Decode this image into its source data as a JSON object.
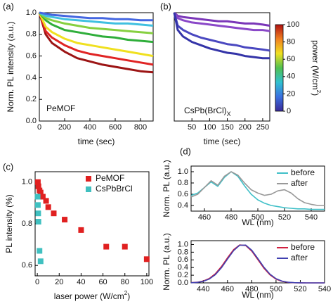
{
  "chart_data": [
    {
      "type": "line",
      "panel": "(a)",
      "annotation": "PeMOF",
      "xlabel": "time (sec)",
      "ylabel": "Norm. PL intensity (a.u.)",
      "xlim": [
        0,
        900
      ],
      "xticks": [
        0,
        200,
        400,
        600,
        800
      ],
      "ylim": [
        0,
        1.0
      ],
      "yticks": [
        {
          "value": 0,
          "label": "0.0"
        },
        0.2,
        0.4,
        0.6,
        0.8,
        {
          "value": 1,
          "label": "1.0"
        }
      ],
      "x": [
        0,
        50,
        100,
        200,
        300,
        400,
        500,
        600,
        700,
        800,
        900
      ],
      "series": [
        {
          "color": "#9c1414",
          "values": [
            1.0,
            0.8,
            0.72,
            0.64,
            0.58,
            0.55,
            0.52,
            0.5,
            0.48,
            0.46,
            0.45
          ]
        },
        {
          "color": "#e02424",
          "values": [
            1.0,
            0.83,
            0.77,
            0.7,
            0.65,
            0.62,
            0.6,
            0.58,
            0.56,
            0.54,
            0.52
          ]
        },
        {
          "color": "#f0e020",
          "values": [
            1.0,
            0.87,
            0.82,
            0.76,
            0.72,
            0.7,
            0.68,
            0.66,
            0.64,
            0.62,
            0.6
          ]
        },
        {
          "color": "#2fae3a",
          "values": [
            1.0,
            0.93,
            0.89,
            0.84,
            0.82,
            0.8,
            0.78,
            0.77,
            0.75,
            0.74,
            0.73
          ]
        },
        {
          "color": "#86d040",
          "values": [
            1.0,
            0.95,
            0.93,
            0.9,
            0.88,
            0.86,
            0.85,
            0.84,
            0.83,
            0.82,
            0.81
          ]
        },
        {
          "color": "#40c0e0",
          "values": [
            1.0,
            0.97,
            0.96,
            0.94,
            0.93,
            0.92,
            0.91,
            0.9,
            0.9,
            0.89,
            0.88
          ]
        },
        {
          "color": "#4466e0",
          "values": [
            1.0,
            0.99,
            0.98,
            0.97,
            0.96,
            0.95,
            0.95,
            0.94,
            0.94,
            0.93,
            0.93
          ]
        }
      ]
    },
    {
      "type": "line",
      "panel": "(b)",
      "annotation": {
        "text": "CsPb(BrCl)",
        "sub": "X"
      },
      "xlabel": "time (sec)",
      "xlim": [
        0,
        270
      ],
      "xticks": [
        50,
        100,
        150,
        200,
        250
      ],
      "ylim": [
        0,
        1.0
      ],
      "x": [
        0,
        10,
        25,
        50,
        75,
        100,
        125,
        150,
        175,
        200,
        225,
        250,
        270
      ],
      "series": [
        {
          "color": "#7a36b8",
          "values": [
            1.0,
            0.97,
            0.96,
            0.95,
            0.94,
            0.93,
            0.92,
            0.92,
            0.91,
            0.9,
            0.9,
            0.89,
            0.88
          ]
        },
        {
          "color": "#8a48c8",
          "values": [
            1.0,
            0.95,
            0.93,
            0.91,
            0.9,
            0.89,
            0.88,
            0.87,
            0.86,
            0.85,
            0.84,
            0.84,
            0.83
          ]
        },
        {
          "color": "#4a48c0",
          "values": [
            1.0,
            0.88,
            0.84,
            0.8,
            0.77,
            0.75,
            0.73,
            0.71,
            0.7,
            0.68,
            0.67,
            0.66,
            0.65
          ]
        },
        {
          "color": "#3434a8",
          "values": [
            1.0,
            0.84,
            0.78,
            0.73,
            0.7,
            0.67,
            0.65,
            0.63,
            0.62,
            0.6,
            0.59,
            0.58,
            0.58
          ]
        }
      ],
      "colorbar": {
        "label": {
          "text": "power (W/cm",
          "sup": "2",
          "tail": ")"
        },
        "lim": [
          0,
          100
        ],
        "ticks": [
          0,
          20,
          40,
          60,
          80,
          100
        ],
        "colors": [
          "#3a2a98",
          "#3a70e0",
          "#30c0d0",
          "#50c050",
          "#f0e020",
          "#f08020",
          "#b01010"
        ]
      }
    },
    {
      "type": "scatter",
      "panel": "(c)",
      "legend": "upper right",
      "xlabel": {
        "text": "laser power (W/cm",
        "sup": "2",
        "tail": ")"
      },
      "ylabel": "PL intensity (%)",
      "xlim": [
        -2,
        102
      ],
      "xticks": [
        0,
        20,
        40,
        60,
        80,
        100
      ],
      "ylim": [
        0.55,
        1.05
      ],
      "yticks": [
        0.6,
        0.8,
        {
          "value": 1,
          "label": "1.0"
        }
      ],
      "series": [
        {
          "name": "PeMOF",
          "color": "#e02020",
          "x": [
            0.5,
            1,
            2,
            3,
            5,
            8,
            10,
            15,
            25,
            40,
            63,
            80,
            100
          ],
          "values": [
            1.0,
            0.98,
            0.96,
            0.95,
            0.93,
            0.91,
            0.88,
            0.85,
            0.82,
            0.77,
            0.69,
            0.69,
            0.63
          ]
        },
        {
          "name": "CsPbBrCl",
          "color": "#40c0c0",
          "x": [
            0.3,
            0.5,
            0.8,
            1,
            2,
            3
          ],
          "values": [
            0.93,
            0.89,
            0.85,
            0.81,
            0.67,
            0.62
          ]
        }
      ]
    },
    {
      "type": "line",
      "panel": "(d)",
      "legend": "upper right",
      "xlabel": "WL (nm)",
      "ylabel": "Norm. PL (a.u.)",
      "xlim": [
        450,
        550
      ],
      "xticks": [
        460,
        480,
        500,
        520,
        540
      ],
      "ylim": [
        0.3,
        1.1
      ],
      "yticks": [
        0.4,
        0.6,
        0.8,
        {
          "value": 1,
          "label": "1.0"
        }
      ],
      "x": [
        450,
        455,
        460,
        465,
        470,
        475,
        480,
        485,
        490,
        495,
        500,
        505,
        510,
        515,
        520,
        525,
        530,
        535,
        540,
        545,
        550
      ],
      "series": [
        {
          "name": "before",
          "color": "#40c0c8",
          "values": [
            0.58,
            0.62,
            0.72,
            0.82,
            0.74,
            0.9,
            1.0,
            0.92,
            0.75,
            0.6,
            0.5,
            0.44,
            0.4,
            0.38,
            0.36,
            0.35,
            0.34,
            0.34,
            0.33,
            0.33,
            0.33
          ]
        },
        {
          "name": "after",
          "color": "#999999",
          "values": [
            0.55,
            0.6,
            0.72,
            0.84,
            0.76,
            0.92,
            1.0,
            0.94,
            0.8,
            0.68,
            0.62,
            0.58,
            0.6,
            0.66,
            0.68,
            0.62,
            0.52,
            0.45,
            0.42,
            0.4,
            0.4
          ]
        }
      ]
    },
    {
      "type": "line",
      "legend": "upper right",
      "xlabel": "WL (nm)",
      "ylabel": "Norm. PL (a.u.)",
      "xlim": [
        430,
        540
      ],
      "xticks": [
        440,
        460,
        480,
        500,
        520,
        540
      ],
      "ylim": [
        0,
        1.1
      ],
      "yticks": [
        {
          "value": 0,
          "label": "0.0"
        },
        0.2,
        0.4,
        0.6,
        0.8,
        {
          "value": 1,
          "label": "1.0"
        }
      ],
      "x": [
        430,
        435,
        440,
        445,
        450,
        455,
        460,
        465,
        470,
        475,
        480,
        485,
        490,
        495,
        500,
        505,
        510,
        515,
        520,
        525,
        530,
        535,
        540
      ],
      "series": [
        {
          "name": "before",
          "color": "#d02040",
          "values": [
            0.005,
            0.017,
            0.048,
            0.115,
            0.239,
            0.425,
            0.653,
            0.865,
            0.988,
            0.974,
            0.827,
            0.607,
            0.383,
            0.209,
            0.098,
            0.04,
            0.014,
            0.004,
            0.001,
            0,
            0,
            0,
            0
          ]
        },
        {
          "name": "after",
          "color": "#4040b0",
          "values": [
            0.004,
            0.013,
            0.04,
            0.1,
            0.215,
            0.395,
            0.62,
            0.84,
            0.98,
            0.985,
            0.85,
            0.635,
            0.41,
            0.228,
            0.11,
            0.046,
            0.017,
            0.005,
            0.001,
            0,
            0,
            0,
            0
          ]
        }
      ]
    }
  ]
}
